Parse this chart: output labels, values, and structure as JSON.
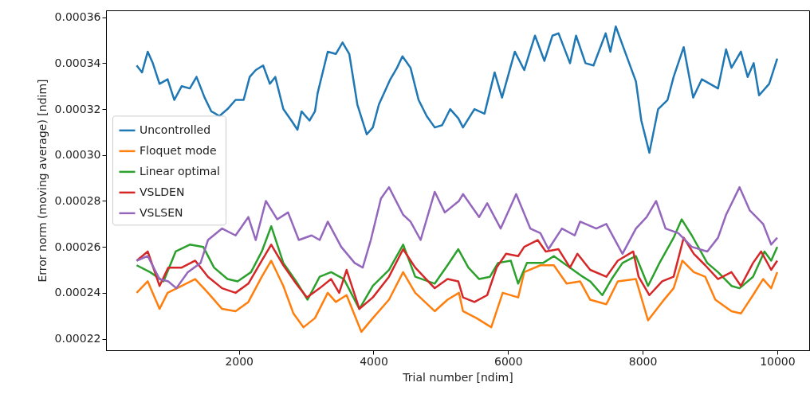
{
  "chart_data": {
    "type": "line",
    "xlabel": "Trial number [ndim]",
    "ylabel": "Error norm (moving average) [ndim]",
    "xlim": [
      25,
      10475
    ],
    "ylim": [
      0.000215,
      0.000363
    ],
    "xticks": [
      2000,
      4000,
      6000,
      8000,
      10000
    ],
    "yticks": [
      0.00022,
      0.00024,
      0.00026,
      0.00028,
      {
        "value": 0.0003,
        "label": "0.00030"
      },
      0.00032,
      0.00034,
      0.00036
    ],
    "legend": "left",
    "series": [
      {
        "name": "Uncontrolled",
        "color": "#1f77b4",
        "x": [
          480,
          560,
          645,
          720,
          820,
          940,
          1040,
          1150,
          1270,
          1370,
          1490,
          1590,
          1710,
          1830,
          1950,
          2070,
          2160,
          2250,
          2360,
          2460,
          2540,
          2660,
          2780,
          2870,
          2930,
          3050,
          3130,
          3170,
          3320,
          3440,
          3540,
          3640,
          3760,
          3900,
          3990,
          4080,
          4250,
          4350,
          4430,
          4550,
          4670,
          4790,
          4910,
          5020,
          5140,
          5260,
          5330,
          5500,
          5650,
          5800,
          5910,
          6100,
          6240,
          6400,
          6540,
          6660,
          6750,
          6920,
          7010,
          7150,
          7270,
          7450,
          7520,
          7600,
          7750,
          7900,
          7980,
          8100,
          8230,
          8370,
          8460,
          8610,
          8750,
          8880,
          9120,
          9240,
          9320,
          9460,
          9560,
          9650,
          9730,
          9880,
          10000
        ],
        "values": [
          0.000339,
          0.000336,
          0.000345,
          0.00034,
          0.000331,
          0.000333,
          0.000324,
          0.00033,
          0.000329,
          0.000334,
          0.000325,
          0.000319,
          0.000317,
          0.00032,
          0.000324,
          0.000324,
          0.000334,
          0.000337,
          0.000339,
          0.000331,
          0.000334,
          0.00032,
          0.000315,
          0.000311,
          0.000319,
          0.000315,
          0.000319,
          0.000327,
          0.000345,
          0.000344,
          0.000349,
          0.000344,
          0.000322,
          0.000309,
          0.000312,
          0.000322,
          0.000333,
          0.000338,
          0.000343,
          0.000338,
          0.000324,
          0.000317,
          0.000312,
          0.000313,
          0.00032,
          0.000316,
          0.000312,
          0.00032,
          0.000318,
          0.000336,
          0.000325,
          0.000345,
          0.000337,
          0.000352,
          0.000341,
          0.000352,
          0.000353,
          0.00034,
          0.000352,
          0.00034,
          0.000339,
          0.000353,
          0.000345,
          0.000356,
          0.000344,
          0.000332,
          0.000315,
          0.000301,
          0.00032,
          0.000324,
          0.000334,
          0.000347,
          0.000325,
          0.000333,
          0.000329,
          0.000346,
          0.000338,
          0.000345,
          0.000334,
          0.00034,
          0.000326,
          0.000331,
          0.000342
        ]
      },
      {
        "name": "Floquet mode",
        "color": "#ff7f0e",
        "x": [
          480,
          645,
          820,
          940,
          1150,
          1350,
          1540,
          1750,
          1950,
          2140,
          2340,
          2480,
          2660,
          2810,
          2960,
          3130,
          3320,
          3440,
          3600,
          3820,
          3990,
          4230,
          4440,
          4620,
          4910,
          5100,
          5270,
          5330,
          5530,
          5750,
          5920,
          6150,
          6240,
          6480,
          6680,
          6870,
          7070,
          7220,
          7460,
          7630,
          7900,
          8080,
          8290,
          8460,
          8590,
          8760,
          8930,
          9080,
          9320,
          9460,
          9640,
          9790,
          9910,
          10000
        ],
        "values": [
          0.00024,
          0.000245,
          0.000233,
          0.00024,
          0.000243,
          0.000246,
          0.00024,
          0.000233,
          0.000232,
          0.000236,
          0.000247,
          0.000254,
          0.000243,
          0.000231,
          0.000225,
          0.000229,
          0.00024,
          0.000236,
          0.000239,
          0.000223,
          0.000229,
          0.000237,
          0.000249,
          0.00024,
          0.000232,
          0.000237,
          0.00024,
          0.000232,
          0.000229,
          0.000225,
          0.00024,
          0.000238,
          0.000249,
          0.000252,
          0.000252,
          0.000244,
          0.000245,
          0.000237,
          0.000235,
          0.000245,
          0.000246,
          0.000228,
          0.000236,
          0.000242,
          0.000254,
          0.000249,
          0.000247,
          0.000237,
          0.000232,
          0.000231,
          0.000239,
          0.000246,
          0.000242,
          0.000249
        ]
      },
      {
        "name": "Linear optimal",
        "color": "#2ca02c",
        "x": [
          480,
          680,
          880,
          1060,
          1270,
          1470,
          1630,
          1830,
          1980,
          2180,
          2340,
          2480,
          2660,
          2850,
          3020,
          3200,
          3370,
          3560,
          3790,
          3990,
          4230,
          4440,
          4620,
          4910,
          5100,
          5260,
          5410,
          5570,
          5730,
          5850,
          6040,
          6150,
          6280,
          6520,
          6680,
          6870,
          7110,
          7220,
          7400,
          7540,
          7700,
          7900,
          8080,
          8250,
          8460,
          8580,
          8730,
          8960,
          9120,
          9320,
          9440,
          9640,
          9810,
          9910,
          10000
        ],
        "values": [
          0.000252,
          0.000249,
          0.000245,
          0.000258,
          0.000261,
          0.00026,
          0.000251,
          0.000246,
          0.000245,
          0.000249,
          0.000258,
          0.000269,
          0.000253,
          0.000245,
          0.000237,
          0.000247,
          0.000249,
          0.000246,
          0.000233,
          0.000243,
          0.00025,
          0.000261,
          0.000247,
          0.000244,
          0.000252,
          0.000259,
          0.000251,
          0.000246,
          0.000247,
          0.000253,
          0.000254,
          0.000244,
          0.000253,
          0.000253,
          0.000256,
          0.000252,
          0.000247,
          0.000245,
          0.000239,
          0.000246,
          0.000253,
          0.000256,
          0.000243,
          0.000253,
          0.000264,
          0.000272,
          0.000265,
          0.000253,
          0.000249,
          0.000243,
          0.000242,
          0.000247,
          0.000258,
          0.000254,
          0.00026
        ]
      },
      {
        "name": "VSLDEN",
        "color": "#d62728",
        "x": [
          480,
          645,
          820,
          950,
          1150,
          1350,
          1540,
          1750,
          1950,
          2140,
          2340,
          2480,
          2660,
          2850,
          3010,
          3200,
          3370,
          3490,
          3600,
          3790,
          3990,
          4230,
          4440,
          4620,
          4910,
          5100,
          5260,
          5330,
          5500,
          5690,
          5830,
          5970,
          6150,
          6240,
          6440,
          6560,
          6750,
          6920,
          7030,
          7220,
          7460,
          7630,
          7860,
          7940,
          8100,
          8290,
          8460,
          8610,
          8760,
          8930,
          9120,
          9320,
          9460,
          9640,
          9760,
          9910,
          10000
        ],
        "values": [
          0.000254,
          0.000258,
          0.000243,
          0.000251,
          0.000251,
          0.000254,
          0.000247,
          0.000242,
          0.00024,
          0.000244,
          0.000254,
          0.000261,
          0.000252,
          0.000244,
          0.000238,
          0.000242,
          0.000246,
          0.00024,
          0.00025,
          0.000233,
          0.000238,
          0.000247,
          0.000259,
          0.000251,
          0.000242,
          0.000246,
          0.000245,
          0.000238,
          0.000236,
          0.000239,
          0.000251,
          0.000257,
          0.000256,
          0.00026,
          0.000263,
          0.000258,
          0.000259,
          0.000251,
          0.000257,
          0.00025,
          0.000247,
          0.000254,
          0.000258,
          0.000247,
          0.000239,
          0.000245,
          0.000247,
          0.000264,
          0.000257,
          0.000252,
          0.000246,
          0.000249,
          0.000243,
          0.000253,
          0.000258,
          0.00025,
          0.000254
        ]
      },
      {
        "name": "VSLSEN",
        "color": "#9467bd",
        "x": [
          480,
          645,
          820,
          950,
          1070,
          1240,
          1430,
          1540,
          1750,
          1950,
          2140,
          2250,
          2400,
          2570,
          2730,
          2890,
          3080,
          3200,
          3320,
          3520,
          3720,
          3840,
          3960,
          4110,
          4230,
          4440,
          4550,
          4700,
          4910,
          5060,
          5270,
          5330,
          5570,
          5690,
          5890,
          6120,
          6330,
          6480,
          6600,
          6800,
          6990,
          7070,
          7310,
          7460,
          7700,
          7900,
          8060,
          8200,
          8340,
          8530,
          8730,
          8960,
          9120,
          9240,
          9440,
          9590,
          9790,
          9910,
          10000
        ],
        "values": [
          0.000254,
          0.000256,
          0.000246,
          0.000245,
          0.000242,
          0.000249,
          0.000253,
          0.000263,
          0.000268,
          0.000265,
          0.000273,
          0.000263,
          0.00028,
          0.000272,
          0.000275,
          0.000263,
          0.000265,
          0.000263,
          0.000271,
          0.00026,
          0.000253,
          0.000251,
          0.000263,
          0.000281,
          0.000286,
          0.000274,
          0.000271,
          0.000263,
          0.000284,
          0.000275,
          0.00028,
          0.000283,
          0.000273,
          0.000279,
          0.000268,
          0.000283,
          0.000268,
          0.000266,
          0.000259,
          0.000268,
          0.000265,
          0.000271,
          0.000268,
          0.00027,
          0.000257,
          0.000268,
          0.000273,
          0.00028,
          0.000268,
          0.000266,
          0.00026,
          0.000258,
          0.000264,
          0.000274,
          0.000286,
          0.000276,
          0.00027,
          0.000261,
          0.000264
        ]
      }
    ]
  }
}
